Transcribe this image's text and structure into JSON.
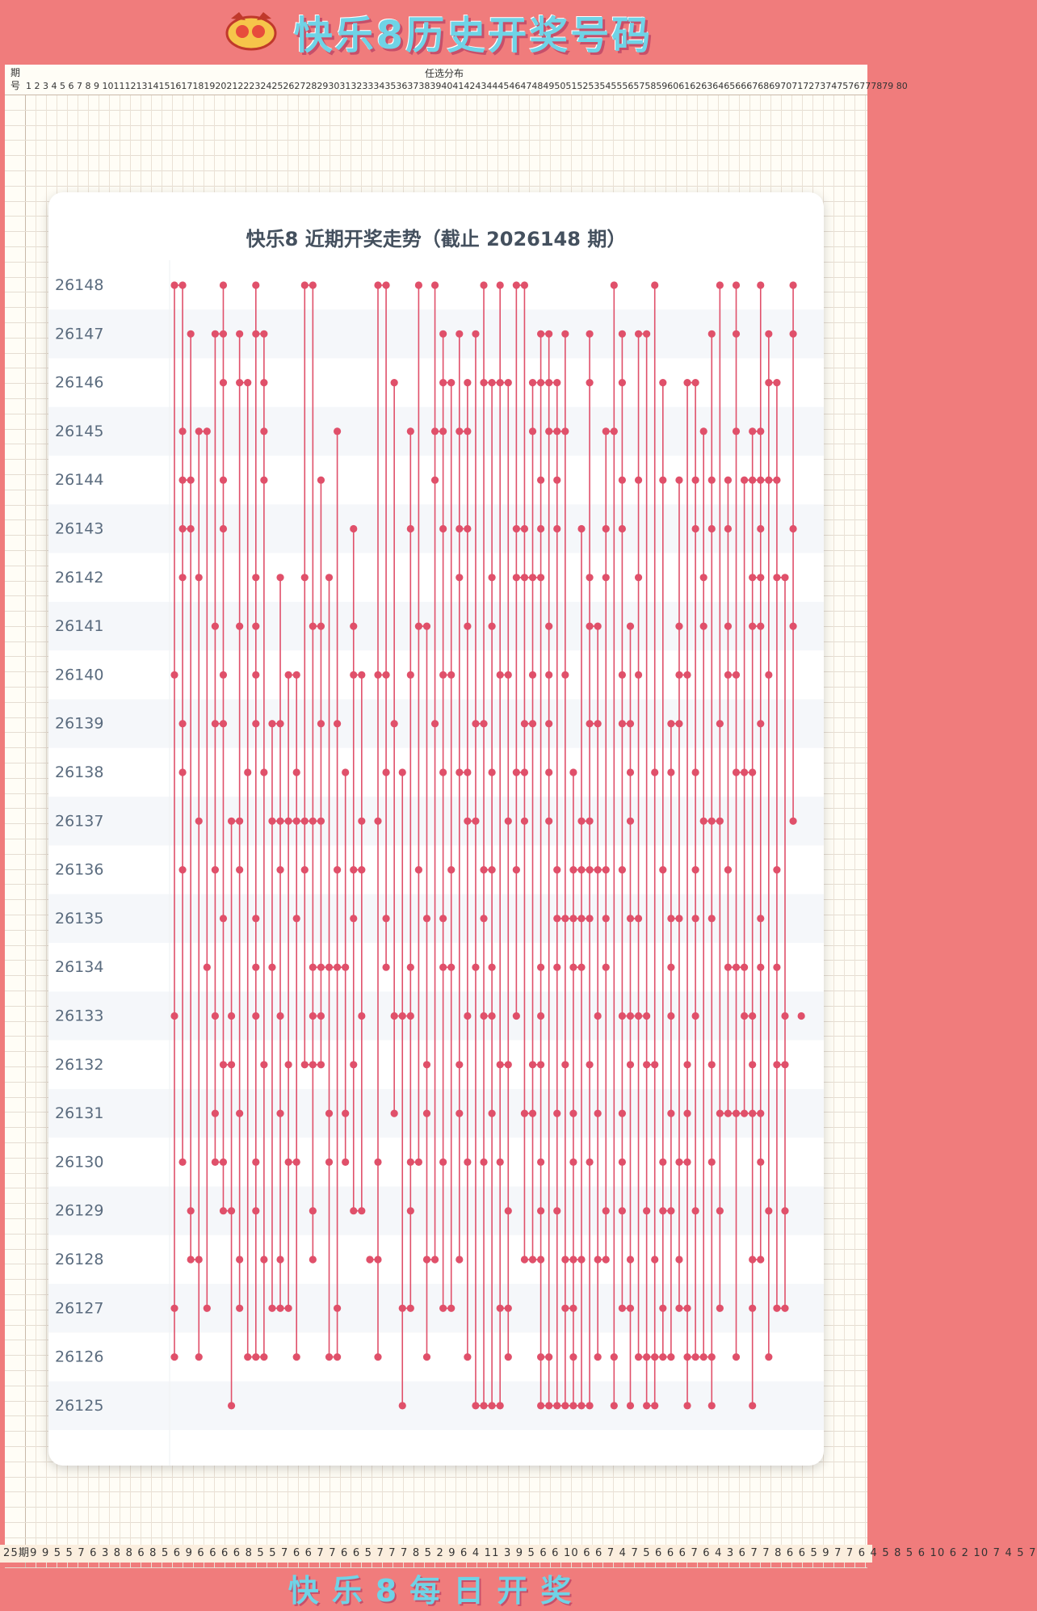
{
  "banner": {
    "title": "快乐8历史开奖号码",
    "logo_icon": "kuaile8-logo-icon"
  },
  "background_table": {
    "period_header": "期号",
    "distribution_header": "任选分布",
    "number_header": "1 2 3 4 5 6 7 8 9 10111213141516171819202122232425262728293031323334353637383940414243444546474849505152535455565758596061626364656667686970717273747576777879 80",
    "footer_row": "25期9 9 5 5 7 6 3 8 8 6 8 5 6 9 6 6 6 6 8 5 5 7 6 6 7 7 6 6 5 7 7 7 8 5 2 9 6 4 11 3 9 5 6 6 10 6 6 7 4 7 5 6 6 6 7 6 4 3 6 7 7 8 6 6 5 9 7 7 6 4 5 8 5 6 10 6 2 10 7 4 5 7"
  },
  "footer": {
    "title": "快乐8每日开奖"
  },
  "colors": {
    "background": "#f07c7c",
    "card": "#ffffff",
    "accent": "#e0506a",
    "title_text": "#44505e",
    "period_text": "#5a6b7e"
  },
  "chart_data": {
    "type": "line",
    "title": "快乐8 近期开奖走势（截止 2026148 期）",
    "number_range": [
      1,
      80
    ],
    "periods": [
      "26148",
      "26147",
      "26146",
      "26145",
      "26144",
      "26143",
      "26142",
      "26141",
      "26140",
      "26139",
      "26138",
      "26137",
      "26136",
      "26135",
      "26134",
      "26133",
      "26132",
      "26131",
      "26130",
      "26129",
      "26128",
      "26127",
      "26126",
      "26125"
    ],
    "draws": {
      "26148": [
        1,
        2,
        7,
        11,
        17,
        18,
        26,
        27,
        31,
        33,
        39,
        41,
        43,
        44,
        55,
        60,
        68,
        70,
        73,
        77
      ],
      "26147": [
        3,
        6,
        7,
        9,
        11,
        12,
        34,
        36,
        38,
        46,
        47,
        49,
        52,
        56,
        58,
        59,
        67,
        70,
        74,
        77
      ],
      "26146": [
        7,
        9,
        10,
        12,
        28,
        34,
        35,
        37,
        39,
        40,
        41,
        42,
        45,
        46,
        47,
        48,
        52,
        56,
        61,
        64,
        65,
        74,
        75
      ],
      "26145": [
        2,
        4,
        5,
        12,
        21,
        30,
        33,
        34,
        36,
        37,
        45,
        47,
        48,
        49,
        54,
        55,
        66,
        70,
        72,
        73
      ],
      "26144": [
        2,
        3,
        7,
        12,
        19,
        33,
        46,
        48,
        56,
        58,
        61,
        63,
        65,
        67,
        69,
        71,
        72,
        73,
        74,
        75
      ],
      "26143": [
        2,
        3,
        7,
        23,
        30,
        34,
        36,
        37,
        43,
        44,
        46,
        48,
        51,
        54,
        56,
        65,
        67,
        69,
        73,
        77
      ],
      "26142": [
        2,
        4,
        11,
        14,
        17,
        20,
        36,
        40,
        43,
        44,
        45,
        46,
        52,
        54,
        58,
        66,
        72,
        73,
        75,
        76
      ],
      "26141": [
        6,
        9,
        11,
        18,
        19,
        23,
        31,
        32,
        37,
        40,
        47,
        52,
        53,
        57,
        63,
        66,
        69,
        72,
        73,
        77
      ],
      "26140": [
        1,
        7,
        11,
        15,
        16,
        23,
        24,
        26,
        27,
        30,
        34,
        35,
        41,
        42,
        45,
        47,
        49,
        56,
        58,
        63,
        64,
        69,
        70,
        74
      ],
      "26139": [
        2,
        6,
        7,
        11,
        13,
        14,
        19,
        21,
        28,
        33,
        38,
        39,
        44,
        45,
        47,
        52,
        53,
        56,
        57,
        62,
        63,
        68,
        73
      ],
      "26138": [
        2,
        10,
        12,
        16,
        22,
        27,
        29,
        34,
        36,
        37,
        40,
        43,
        44,
        47,
        50,
        57,
        60,
        62,
        65,
        70,
        71,
        72
      ],
      "26137": [
        4,
        8,
        9,
        13,
        14,
        15,
        16,
        17,
        18,
        19,
        24,
        26,
        37,
        38,
        42,
        44,
        47,
        51,
        52,
        57,
        66,
        67,
        68,
        77
      ],
      "26136": [
        2,
        6,
        9,
        14,
        17,
        21,
        23,
        24,
        31,
        35,
        39,
        40,
        43,
        48,
        50,
        51,
        52,
        53,
        54,
        56,
        61,
        65,
        69,
        75
      ],
      "26135": [
        7,
        11,
        16,
        23,
        27,
        32,
        34,
        39,
        48,
        49,
        50,
        51,
        52,
        54,
        57,
        58,
        62,
        63,
        65,
        67,
        73
      ],
      "26134": [
        5,
        11,
        13,
        18,
        19,
        20,
        21,
        22,
        27,
        30,
        34,
        35,
        38,
        40,
        46,
        48,
        50,
        51,
        54,
        62,
        69,
        70,
        71,
        73,
        75
      ],
      "26133": [
        1,
        6,
        8,
        11,
        14,
        18,
        19,
        24,
        28,
        29,
        30,
        37,
        39,
        40,
        43,
        46,
        53,
        56,
        57,
        58,
        59,
        62,
        65,
        71,
        72,
        76,
        78
      ],
      "26132": [
        7,
        8,
        12,
        15,
        17,
        18,
        19,
        23,
        32,
        36,
        41,
        42,
        45,
        46,
        49,
        52,
        57,
        59,
        60,
        64,
        67,
        72,
        75,
        76
      ],
      "26131": [
        6,
        9,
        14,
        20,
        22,
        28,
        32,
        36,
        40,
        44,
        45,
        48,
        50,
        53,
        56,
        62,
        64,
        68,
        69,
        70,
        71,
        72,
        73
      ],
      "26130": [
        2,
        6,
        7,
        11,
        15,
        16,
        20,
        22,
        26,
        30,
        31,
        34,
        37,
        39,
        41,
        46,
        50,
        52,
        56,
        61,
        63,
        64,
        67,
        73
      ],
      "26129": [
        3,
        7,
        8,
        11,
        18,
        23,
        24,
        30,
        42,
        46,
        48,
        54,
        56,
        59,
        61,
        62,
        65,
        68,
        74,
        76
      ],
      "26128": [
        3,
        4,
        9,
        12,
        14,
        18,
        25,
        26,
        32,
        33,
        36,
        44,
        45,
        46,
        49,
        50,
        51,
        53,
        54,
        57,
        60,
        63,
        72,
        73
      ],
      "26127": [
        1,
        5,
        9,
        13,
        14,
        15,
        21,
        29,
        30,
        34,
        35,
        41,
        42,
        49,
        50,
        56,
        57,
        61,
        63,
        64,
        68,
        72,
        75,
        76
      ],
      "26126": [
        1,
        4,
        10,
        11,
        12,
        16,
        20,
        21,
        26,
        32,
        37,
        42,
        46,
        47,
        50,
        53,
        55,
        58,
        59,
        60,
        61,
        62,
        64,
        65,
        66,
        67,
        70,
        74
      ],
      "26125": [
        8,
        29,
        38,
        39,
        40,
        41,
        46,
        47,
        48,
        49,
        50,
        51,
        52,
        55,
        57,
        59,
        60,
        64,
        67,
        72
      ]
    }
  }
}
